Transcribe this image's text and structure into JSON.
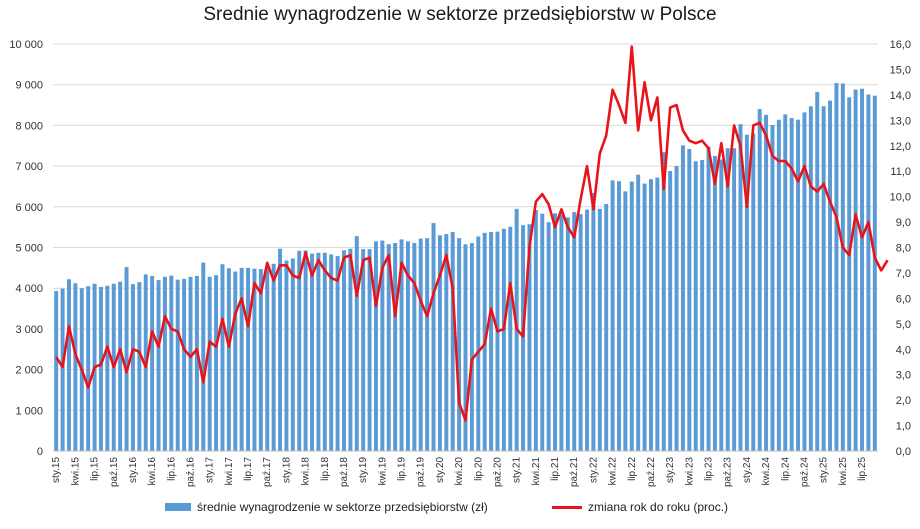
{
  "chart_data": {
    "type": "bar",
    "title": "Srednie wynagrodzenie w sektorze przedsiębiorstw w Polsce",
    "y_left": {
      "min": 0,
      "max": 10000,
      "ticks": [
        "0",
        "1 000",
        "2 000",
        "3 000",
        "4 000",
        "5 000",
        "6 000",
        "7 000",
        "8 000",
        "9 000",
        "10 000"
      ]
    },
    "y_right": {
      "min": 0,
      "max": 16,
      "ticks": [
        "0,0",
        "1,0",
        "2,0",
        "3,0",
        "4,0",
        "5,0",
        "6,0",
        "7,0",
        "8,0",
        "9,0",
        "10,0",
        "11,0",
        "12,0",
        "13,0",
        "14,0",
        "15,0",
        "16,0"
      ]
    },
    "x_tick_labels": [
      "sty.15",
      "kwi.15",
      "lip.15",
      "paź.15",
      "sty.16",
      "kwi.16",
      "lip.16",
      "paź.16",
      "sty.17",
      "kwi.17",
      "lip.17",
      "paź.17",
      "sty.18",
      "kwi.18",
      "lip.18",
      "paź.18",
      "sty.19",
      "kwi.19",
      "lip.19",
      "paź.19",
      "sty.20",
      "kwi.20",
      "lip.20",
      "paź.20",
      "sty.21",
      "kwi.21",
      "lip.21",
      "paź.21",
      "sty.22",
      "kwi.22",
      "lip.22",
      "paź.22",
      "sty.23",
      "kwi.23",
      "lip.23",
      "paź.23",
      "sty.24",
      "kwi.24",
      "lip.24",
      "paź.24",
      "sty.25",
      "kwi.25",
      "lip.25"
    ],
    "grid": true,
    "legend_position": "bottom",
    "series": [
      {
        "name": "średnie wynagrodzenie w sektorze przedsiębiorstw (zł)",
        "type": "bar",
        "axis": "left",
        "color": "#5b9bd5",
        "values": [
          3930,
          3990,
          4220,
          4120,
          4000,
          4050,
          4110,
          4030,
          4060,
          4110,
          4160,
          4520,
          4100,
          4150,
          4340,
          4300,
          4200,
          4280,
          4310,
          4210,
          4230,
          4280,
          4300,
          4630,
          4280,
          4320,
          4590,
          4490,
          4410,
          4500,
          4500,
          4480,
          4470,
          4560,
          4600,
          4970,
          4680,
          4730,
          4920,
          4930,
          4850,
          4870,
          4870,
          4830,
          4790,
          4930,
          4970,
          5280,
          4960,
          4960,
          5150,
          5170,
          5080,
          5110,
          5200,
          5150,
          5110,
          5220,
          5230,
          5600,
          5300,
          5330,
          5380,
          5230,
          5080,
          5110,
          5270,
          5360,
          5380,
          5390,
          5460,
          5510,
          5950,
          5550,
          5570,
          5920,
          5830,
          5620,
          5840,
          5810,
          5740,
          5870,
          5820,
          5930,
          6340,
          5950,
          6070,
          6650,
          6630,
          6380,
          6620,
          6790,
          6570,
          6680,
          6720,
          7340,
          6880,
          7000,
          7510,
          7420,
          7120,
          7150,
          7480,
          7250,
          7160,
          7440,
          7440,
          8030,
          7770,
          7800,
          8400,
          8260,
          8010,
          8140,
          8270,
          8180,
          8140,
          8320,
          8470,
          8820,
          8470,
          8610,
          9040,
          9030,
          8690,
          8880,
          8900,
          8760,
          8730
        ]
      },
      {
        "name": "zmiana rok do roku (proc.)",
        "type": "line",
        "axis": "right",
        "color": "#e8141b",
        "values": [
          3.7,
          3.3,
          4.9,
          3.8,
          3.2,
          2.5,
          3.3,
          3.4,
          4.1,
          3.3,
          4.0,
          3.1,
          4.0,
          3.9,
          3.3,
          4.7,
          4.1,
          5.3,
          4.8,
          4.7,
          4.0,
          3.7,
          4.0,
          2.7,
          4.3,
          4.1,
          5.2,
          4.1,
          5.4,
          6.0,
          4.9,
          6.6,
          6.2,
          7.4,
          6.7,
          7.3,
          7.3,
          6.9,
          6.8,
          7.8,
          6.9,
          7.5,
          7.1,
          6.8,
          6.7,
          7.6,
          7.7,
          6.1,
          7.5,
          7.6,
          5.7,
          7.2,
          7.7,
          5.3,
          7.4,
          6.9,
          6.6,
          5.9,
          5.3,
          6.2,
          6.9,
          7.7,
          6.4,
          1.9,
          1.2,
          3.6,
          3.9,
          4.2,
          5.6,
          4.7,
          4.8,
          6.6,
          4.8,
          4.5,
          8.0,
          9.8,
          10.1,
          9.7,
          8.8,
          9.5,
          8.8,
          8.4,
          9.9,
          11.2,
          9.5,
          11.7,
          12.4,
          14.2,
          13.6,
          12.9,
          15.9,
          12.6,
          14.5,
          13.0,
          13.9,
          10.3,
          13.5,
          13.6,
          12.6,
          12.2,
          12.1,
          12.2,
          11.9,
          10.5,
          12.1,
          10.4,
          12.8,
          12.0,
          9.6,
          12.8,
          12.9,
          12.4,
          11.6,
          11.4,
          11.4,
          11.1,
          10.6,
          11.2,
          10.4,
          10.2,
          10.5,
          9.8,
          9.2,
          8.0,
          7.7,
          9.3,
          8.4,
          9.0,
          7.6,
          7.1,
          7.5
        ]
      }
    ]
  }
}
